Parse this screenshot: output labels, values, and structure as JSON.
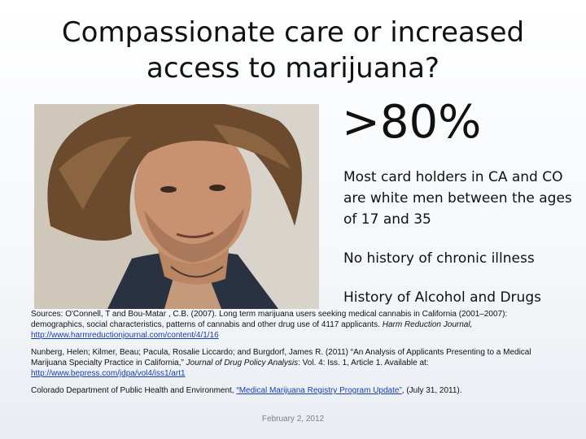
{
  "slide": {
    "title_line1": "Compassionate care or increased",
    "title_line2": "access to marijuana?",
    "stat": ">80%",
    "bullets": [
      "Most card holders in CA and CO are white men between the ages of 17 and 35",
      "No history of chronic illness",
      "History of Alcohol and Drugs"
    ],
    "photo_icon": "portrait-photo"
  },
  "sources": {
    "s1_text": "Sources: O'Connell, T and Bou-Matar , C.B. (2007). Long term marijuana users seeking medical cannabis in California (2001–2007): demographics, social characteristics, patterns of cannabis and other drug use of 4117 applicants.",
    "s1_journal": "Harm Reduction Journal,",
    "s1_link": "http://www.harmreductionjournal.com/content/4/1/16",
    "s2_text": "Nunberg, Helen; Kilmer, Beau; Pacula, Rosalie Liccardo; and Burgdorf, James R. (2011) “An Analysis of Applicants Presenting to a Medical Marijuana Specialty Practice in California,”",
    "s2_journal": "Journal of Drug Policy Analysis",
    "s2_rest": ": Vol. 4: Iss. 1, Article 1. Available at:",
    "s2_link": "http://www.bepress.com/jdpa/vol4/iss1/art1",
    "s3_text": "Colorado Department of Public Health and Environment,",
    "s3_link": "“Medical Marijuana Registry Program Update”",
    "s3_rest": ", (July 31, 2011)."
  },
  "footer": {
    "date": "February 2, 2012"
  }
}
